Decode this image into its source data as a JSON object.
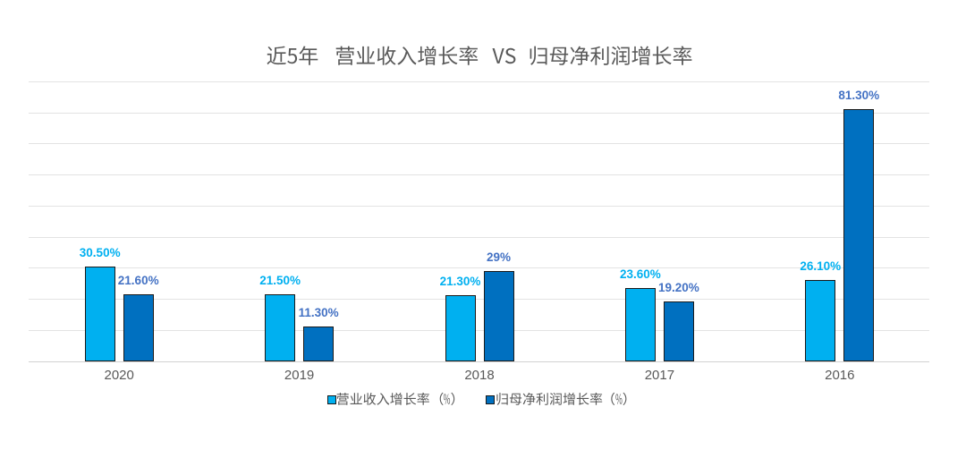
{
  "page": {
    "background": "#ffffff"
  },
  "chart_data": {
    "type": "bar",
    "title": "近5年　营业收入增长率 VS 归母净利润增长率",
    "categories": [
      "2020",
      "2019",
      "2018",
      "2017",
      "2016"
    ],
    "series": [
      {
        "name": "营业收入增长率（%）",
        "color": "#00b0f0",
        "label_color": "#00b0f0",
        "values": [
          30.5,
          21.5,
          21.3,
          23.6,
          26.1
        ],
        "labels": [
          "30.50%",
          "21.50%",
          "21.30%",
          "23.60%",
          "26.10%"
        ]
      },
      {
        "name": "归母净利润增长率（%）",
        "color": "#0070c0",
        "label_color": "#4472c4",
        "values": [
          21.6,
          11.3,
          29.0,
          19.2,
          81.3
        ],
        "labels": [
          "21.60%",
          "11.30%",
          "29%",
          "19.20%",
          "81.30%"
        ]
      }
    ],
    "xlabel": "",
    "ylabel": "",
    "ylim": [
      0,
      90
    ],
    "gridline_step": 10,
    "grid": true,
    "legend_position": "bottom",
    "colors": {
      "bar_border": "#1a1a1a",
      "gridline": "#e3e3e3",
      "axis_line": "#d2d2d2",
      "text": "#595959"
    }
  }
}
